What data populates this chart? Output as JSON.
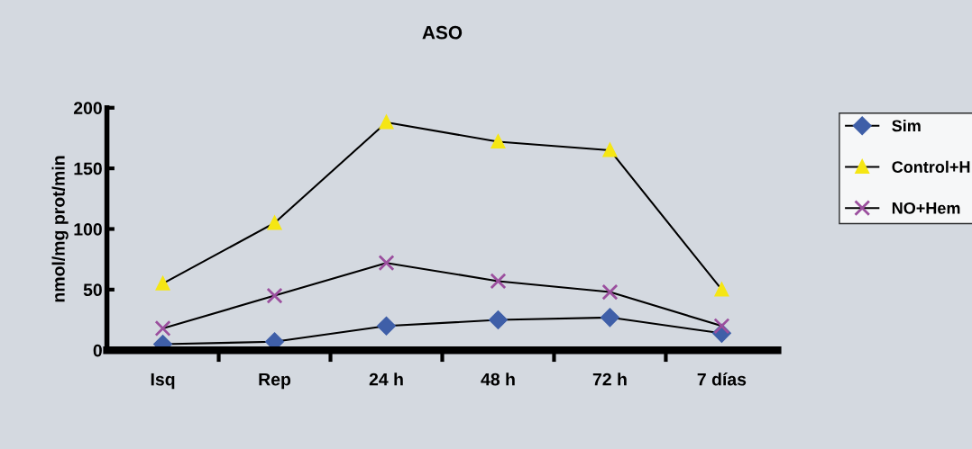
{
  "chart_data": {
    "type": "line",
    "title": "ASO",
    "ylabel": "nmol/mg prot/min",
    "categories": [
      "Isq",
      "Rep",
      "24 h",
      "48 h",
      "72 h",
      "7 días"
    ],
    "series": [
      {
        "name": "Sim",
        "color": "#3f5fa8",
        "marker": "diamond",
        "values": [
          5,
          7,
          20,
          25,
          27,
          14
        ]
      },
      {
        "name": "Control+H",
        "color": "#f5e614",
        "marker": "triangle",
        "values": [
          55,
          105,
          188,
          172,
          165,
          50
        ]
      },
      {
        "name": "NO+Hem",
        "color": "#9b4f9e",
        "marker": "cross",
        "values": [
          18,
          45,
          72,
          57,
          48,
          20
        ]
      }
    ],
    "ylim": [
      0,
      200
    ],
    "yticks": [
      0,
      50,
      100,
      150,
      200
    ],
    "grid": false,
    "legend": "right"
  }
}
